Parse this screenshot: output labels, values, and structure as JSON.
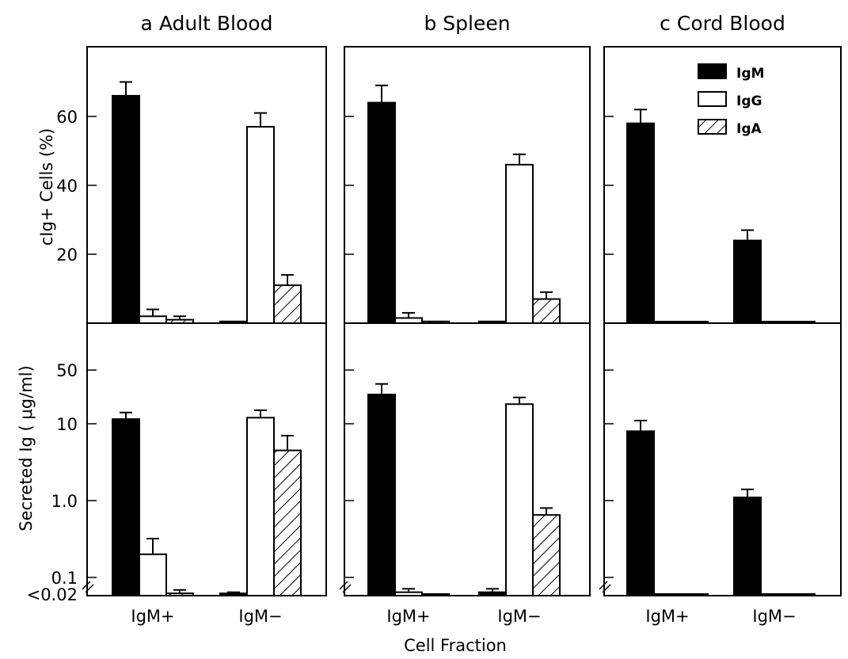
{
  "chart_data": {
    "type": "bar",
    "xlabel": "Cell Fraction",
    "categories": [
      "IgM+",
      "IgM−"
    ],
    "legend": {
      "placement": "top-right of panel c",
      "entries": [
        {
          "name": "IgM",
          "fill": "solid black"
        },
        {
          "name": "IgG",
          "fill": "white"
        },
        {
          "name": "IgA",
          "fill": "hatched"
        }
      ]
    },
    "top": {
      "ylabel": "cIg+ Cells (%)",
      "scale": "linear",
      "ylim": [
        0,
        80
      ],
      "ticks": [
        "20",
        "40",
        "60"
      ],
      "tick_values": [
        20,
        40,
        60
      ]
    },
    "bottom": {
      "ylabel": "Secreted Ig ( μg/ml)",
      "scale": "log",
      "ylim": [
        0.02,
        200
      ],
      "ticks": [
        "<0.02",
        "0.1",
        "1.0",
        "10",
        "50"
      ],
      "tick_values": [
        0.02,
        0.1,
        1,
        10,
        50
      ]
    },
    "panels": [
      {
        "title": "a  Adult Blood",
        "top": {
          "series": [
            {
              "name": "IgM",
              "values": [
                66,
                0.5
              ],
              "error_upper": [
                70,
                null
              ]
            },
            {
              "name": "IgG",
              "values": [
                2,
                57
              ],
              "error_upper": [
                4,
                61
              ]
            },
            {
              "name": "IgA",
              "values": [
                1,
                11
              ],
              "error_upper": [
                2,
                14
              ]
            }
          ]
        },
        "bottom": {
          "series": [
            {
              "name": "IgM",
              "values": [
                11.5,
                0.03
              ],
              "error_upper": [
                14,
                0.035
              ]
            },
            {
              "name": "IgG",
              "values": [
                0.2,
                12
              ],
              "error_upper": [
                0.32,
                15
              ]
            },
            {
              "name": "IgA",
              "values": [
                0.03,
                4.5
              ],
              "error_upper": [
                0.045,
                7
              ]
            }
          ]
        }
      },
      {
        "title": "b  Spleen",
        "top": {
          "series": [
            {
              "name": "IgM",
              "values": [
                64,
                0.5
              ],
              "error_upper": [
                69,
                null
              ]
            },
            {
              "name": "IgG",
              "values": [
                1.5,
                46
              ],
              "error_upper": [
                3,
                49
              ]
            },
            {
              "name": "IgA",
              "values": [
                0.5,
                7
              ],
              "error_upper": [
                null,
                9
              ]
            }
          ]
        },
        "bottom": {
          "series": [
            {
              "name": "IgM",
              "values": [
                24,
                0.035
              ],
              "error_upper": [
                33,
                0.05
              ]
            },
            {
              "name": "IgG",
              "values": [
                0.035,
                18
              ],
              "error_upper": [
                0.05,
                22
              ]
            },
            {
              "name": "IgA",
              "values": [
                0.02,
                0.65
              ],
              "error_upper": [
                null,
                0.8
              ]
            }
          ]
        }
      },
      {
        "title": "c  Cord Blood",
        "top": {
          "series": [
            {
              "name": "IgM",
              "values": [
                58,
                24
              ],
              "error_upper": [
                62,
                27
              ]
            },
            {
              "name": "IgG",
              "values": [
                0.3,
                0.3
              ],
              "error_upper": [
                null,
                null
              ]
            },
            {
              "name": "IgA",
              "values": [
                0.3,
                0.3
              ],
              "error_upper": [
                null,
                null
              ]
            }
          ]
        },
        "bottom": {
          "series": [
            {
              "name": "IgM",
              "values": [
                8,
                1.1
              ],
              "error_upper": [
                11,
                1.4
              ]
            },
            {
              "name": "IgG",
              "values": [
                0.022,
                0.022
              ],
              "error_upper": [
                null,
                null
              ]
            },
            {
              "name": "IgA",
              "values": [
                0.022,
                0.022
              ],
              "error_upper": [
                null,
                null
              ]
            }
          ]
        }
      }
    ]
  }
}
